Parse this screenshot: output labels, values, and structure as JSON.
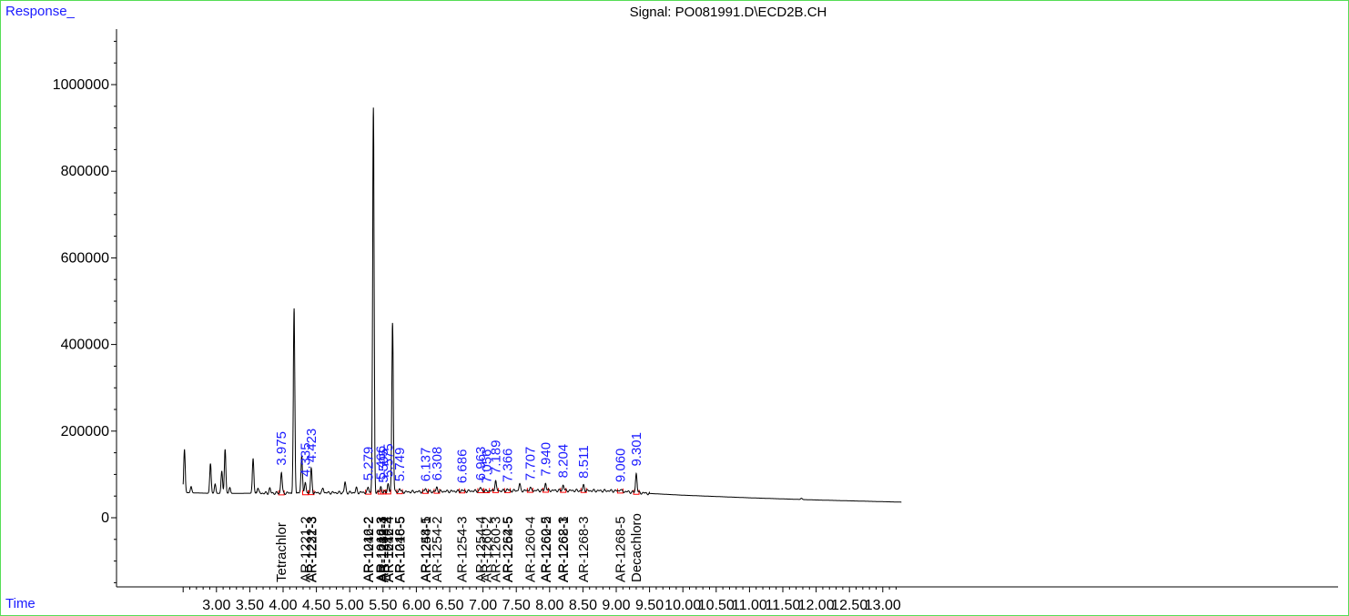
{
  "header": {
    "response_label": "Response_",
    "signal_title": "Signal: PO081991.D\\ECD2B.CH",
    "time_label": "Time"
  },
  "colors": {
    "trace": "#000000",
    "peak_label": "#1a1aff",
    "baseline": "#ff0000",
    "frame": "#55dd55"
  },
  "chart_data": {
    "type": "line",
    "title": "Signal: PO081991.D\\ECD2B.CH",
    "xlabel": "Time",
    "ylabel": "Response_",
    "xlim": [
      2.48,
      13.28
    ],
    "ylim": [
      -160000,
      1130000
    ],
    "x_ticks": [
      3.0,
      3.5,
      4.0,
      4.5,
      5.0,
      5.5,
      6.0,
      6.5,
      7.0,
      7.5,
      8.0,
      8.5,
      9.0,
      9.5,
      10.0,
      10.5,
      11.0,
      11.5,
      12.0,
      12.5,
      13.0
    ],
    "x_tick_labels": [
      "3.00",
      "3.50",
      "4.00",
      "4.50",
      "5.00",
      "5.50",
      "6.00",
      "6.50",
      "7.00",
      "7.50",
      "8.00",
      "8.50",
      "9.00",
      "9.50",
      "10.00",
      "10.50",
      "11.00",
      "11.50",
      "12.00",
      "12.50",
      "13.00"
    ],
    "y_ticks": [
      0,
      200000,
      400000,
      600000,
      800000,
      1000000
    ],
    "y_tick_labels": [
      "0",
      "200000",
      "400000",
      "600000",
      "800000",
      "1000000"
    ],
    "grid": false,
    "baseline": [
      [
        2.5,
        58000
      ],
      [
        3.0,
        56000
      ],
      [
        4.0,
        57000
      ],
      [
        5.0,
        58000
      ],
      [
        6.0,
        60000
      ],
      [
        7.0,
        62000
      ],
      [
        8.0,
        63000
      ],
      [
        9.0,
        62000
      ],
      [
        9.5,
        56000
      ],
      [
        10.0,
        52000
      ],
      [
        11.0,
        46000
      ],
      [
        12.0,
        41000
      ],
      [
        13.28,
        36000
      ]
    ],
    "peaks": [
      {
        "x": 2.52,
        "y": 158000
      },
      {
        "x": 2.62,
        "y": 72000
      },
      {
        "x": 2.91,
        "y": 125000
      },
      {
        "x": 2.98,
        "y": 78000
      },
      {
        "x": 3.08,
        "y": 108000
      },
      {
        "x": 3.13,
        "y": 158000
      },
      {
        "x": 3.2,
        "y": 70000
      },
      {
        "x": 3.55,
        "y": 137000
      },
      {
        "x": 3.62,
        "y": 70000
      },
      {
        "x": 3.8,
        "y": 68000
      },
      {
        "x": 3.975,
        "y": 105000
      },
      {
        "x": 4.165,
        "y": 480000
      },
      {
        "x": 4.28,
        "y": 145000
      },
      {
        "x": 4.335,
        "y": 80000
      },
      {
        "x": 4.423,
        "y": 112000
      },
      {
        "x": 4.6,
        "y": 68000
      },
      {
        "x": 4.93,
        "y": 82000
      },
      {
        "x": 5.1,
        "y": 68000
      },
      {
        "x": 5.279,
        "y": 70000
      },
      {
        "x": 5.355,
        "y": 945000
      },
      {
        "x": 5.466,
        "y": 72000
      },
      {
        "x": 5.575,
        "y": 78000
      },
      {
        "x": 5.643,
        "y": 452000
      },
      {
        "x": 5.749,
        "y": 68000
      },
      {
        "x": 6.137,
        "y": 68000
      },
      {
        "x": 6.308,
        "y": 70000
      },
      {
        "x": 6.686,
        "y": 64000
      },
      {
        "x": 6.963,
        "y": 70000
      },
      {
        "x": 7.189,
        "y": 86000
      },
      {
        "x": 7.366,
        "y": 66000
      },
      {
        "x": 7.55,
        "y": 78000
      },
      {
        "x": 7.707,
        "y": 70000
      },
      {
        "x": 7.94,
        "y": 80000
      },
      {
        "x": 8.204,
        "y": 76000
      },
      {
        "x": 8.511,
        "y": 75000
      },
      {
        "x": 9.06,
        "y": 66000
      },
      {
        "x": 9.301,
        "y": 103000
      },
      {
        "x": 11.78,
        "y": 45000
      }
    ],
    "peak_labels": [
      {
        "x": 3.975,
        "y": 108000,
        "text": "3.975"
      },
      {
        "x": 4.335,
        "y": 82000,
        "text": "4.335"
      },
      {
        "x": 4.423,
        "y": 115000,
        "text": "4.423"
      },
      {
        "x": 5.279,
        "y": 73000,
        "text": "5.279"
      },
      {
        "x": 5.466,
        "y": 75000,
        "text": "5.466"
      },
      {
        "x": 5.505,
        "y": 68000,
        "text": "5.505"
      },
      {
        "x": 5.575,
        "y": 80000,
        "text": "5.575"
      },
      {
        "x": 5.749,
        "y": 71000,
        "text": "5.749"
      },
      {
        "x": 6.137,
        "y": 71000,
        "text": "6.137"
      },
      {
        "x": 6.308,
        "y": 73000,
        "text": "6.308"
      },
      {
        "x": 6.686,
        "y": 67000,
        "text": "6.686"
      },
      {
        "x": 6.963,
        "y": 73000,
        "text": "6.963"
      },
      {
        "x": 7.056,
        "y": 67000,
        "text": "7.056"
      },
      {
        "x": 7.189,
        "y": 88000,
        "text": "7.189"
      },
      {
        "x": 7.366,
        "y": 69000,
        "text": "7.366"
      },
      {
        "x": 7.707,
        "y": 73000,
        "text": "7.707"
      },
      {
        "x": 7.94,
        "y": 83000,
        "text": "7.940"
      },
      {
        "x": 8.204,
        "y": 79000,
        "text": "8.204"
      },
      {
        "x": 8.511,
        "y": 78000,
        "text": "8.511"
      },
      {
        "x": 9.06,
        "y": 69000,
        "text": "9.060"
      },
      {
        "x": 9.301,
        "y": 106000,
        "text": "9.301"
      }
    ],
    "compound_labels": [
      {
        "x": 3.975,
        "text": "Tetrachlor"
      },
      {
        "x": 4.335,
        "text": "AR-1221-2"
      },
      {
        "x": 4.423,
        "text": "AR-1232-3"
      },
      {
        "x": 4.43,
        "text": "AR-1221-3"
      },
      {
        "x": 5.279,
        "text": "AR-1016-2"
      },
      {
        "x": 5.285,
        "text": "AR-1242-2"
      },
      {
        "x": 5.466,
        "text": "AR-1016-3"
      },
      {
        "x": 5.472,
        "text": "AR-1242-3"
      },
      {
        "x": 5.505,
        "text": "AR-1232-4"
      },
      {
        "x": 5.512,
        "text": "AR-1248-1"
      },
      {
        "x": 5.575,
        "text": "AR-1016-4"
      },
      {
        "x": 5.582,
        "text": "AR-1242-4"
      },
      {
        "x": 5.749,
        "text": "AR-1248-5"
      },
      {
        "x": 5.756,
        "text": "AR-1016-5"
      },
      {
        "x": 6.137,
        "text": "AR-1248-5"
      },
      {
        "x": 6.144,
        "text": "AR-1254-1"
      },
      {
        "x": 6.308,
        "text": "AR-1254-2"
      },
      {
        "x": 6.686,
        "text": "AR-1254-3"
      },
      {
        "x": 6.963,
        "text": "AR-1254-4"
      },
      {
        "x": 7.056,
        "text": "AR-1260-2"
      },
      {
        "x": 7.189,
        "text": "AR-1260-3"
      },
      {
        "x": 7.366,
        "text": "AR-1262-5"
      },
      {
        "x": 7.373,
        "text": "AR-1254-5"
      },
      {
        "x": 7.707,
        "text": "AR-1260-4"
      },
      {
        "x": 7.94,
        "text": "AR-1260-5"
      },
      {
        "x": 7.947,
        "text": "AR-1262-2"
      },
      {
        "x": 8.204,
        "text": "AR-1262-3"
      },
      {
        "x": 8.211,
        "text": "AR-1268-1"
      },
      {
        "x": 8.511,
        "text": "AR-1268-3"
      },
      {
        "x": 9.06,
        "text": "AR-1268-5"
      },
      {
        "x": 9.301,
        "text": "Decachloro"
      }
    ]
  }
}
